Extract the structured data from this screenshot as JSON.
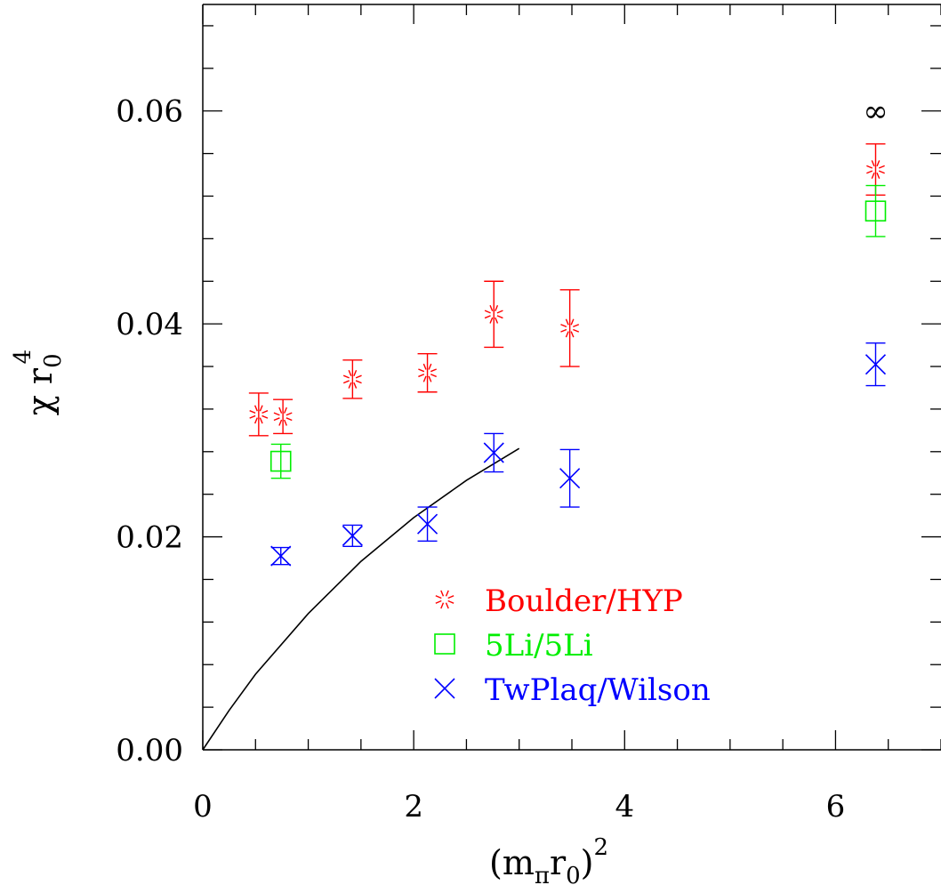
{
  "chart_data": {
    "type": "scatter",
    "title": "",
    "xlabel": {
      "main": "(m",
      "sub1": "π",
      "mid": "r",
      "sub2": "0",
      "tail": ")",
      "sup": "2"
    },
    "ylabel": {
      "main": "χ r",
      "sub": "0",
      "sup": "4"
    },
    "xlim": [
      0,
      7
    ],
    "ylim": [
      0,
      0.07
    ],
    "x_ticks": [
      {
        "value": 0,
        "label": "0"
      },
      {
        "value": 2,
        "label": "2"
      },
      {
        "value": 4,
        "label": "4"
      },
      {
        "value": 6,
        "label": "6"
      }
    ],
    "y_ticks": [
      {
        "value": 0.0,
        "label": "0.00"
      },
      {
        "value": 0.02,
        "label": "0.02"
      },
      {
        "value": 0.04,
        "label": "0.04"
      },
      {
        "value": 0.06,
        "label": "0.06"
      }
    ],
    "x_minor_step": 0.5,
    "y_minor_step": 0.004,
    "legend_position": "lower-right",
    "series": [
      {
        "name": "Boulder/HYP",
        "marker": "burst",
        "color": "#ff0000",
        "points": [
          {
            "x": 0.53,
            "y": 0.0315,
            "err": 0.002
          },
          {
            "x": 0.76,
            "y": 0.0313,
            "err": 0.0016
          },
          {
            "x": 1.42,
            "y": 0.0348,
            "err": 0.0018
          },
          {
            "x": 2.13,
            "y": 0.0354,
            "err": 0.0018
          },
          {
            "x": 2.76,
            "y": 0.0409,
            "err": 0.0031
          },
          {
            "x": 3.48,
            "y": 0.0396,
            "err": 0.0036
          },
          {
            "x": 6.38,
            "y": 0.0545,
            "err": 0.0024
          }
        ]
      },
      {
        "name": "5Li/5Li",
        "marker": "square",
        "color": "#00ee00",
        "points": [
          {
            "x": 0.74,
            "y": 0.0271,
            "err": 0.0016
          },
          {
            "x": 6.38,
            "y": 0.0506,
            "err": 0.0024
          }
        ]
      },
      {
        "name": "TwPlaq/Wilson",
        "marker": "cross",
        "color": "#0000ff",
        "points": [
          {
            "x": 0.74,
            "y": 0.0182,
            "err": 0.0008
          },
          {
            "x": 1.42,
            "y": 0.0201,
            "err": 0.001
          },
          {
            "x": 2.13,
            "y": 0.0212,
            "err": 0.0016
          },
          {
            "x": 2.76,
            "y": 0.0279,
            "err": 0.0018
          },
          {
            "x": 3.48,
            "y": 0.0255,
            "err": 0.0027
          },
          {
            "x": 6.38,
            "y": 0.0362,
            "err": 0.002
          }
        ]
      }
    ],
    "curve": {
      "color": "#000000",
      "points": [
        [
          0,
          0
        ],
        [
          0.25,
          0.0037
        ],
        [
          0.5,
          0.0071
        ],
        [
          1.0,
          0.0128
        ],
        [
          1.5,
          0.0177
        ],
        [
          2.0,
          0.0218
        ],
        [
          2.5,
          0.0253
        ],
        [
          3.0,
          0.0283
        ]
      ]
    },
    "annotations": [
      {
        "text": "∞",
        "x": 6.38,
        "y": 0.06
      }
    ]
  }
}
